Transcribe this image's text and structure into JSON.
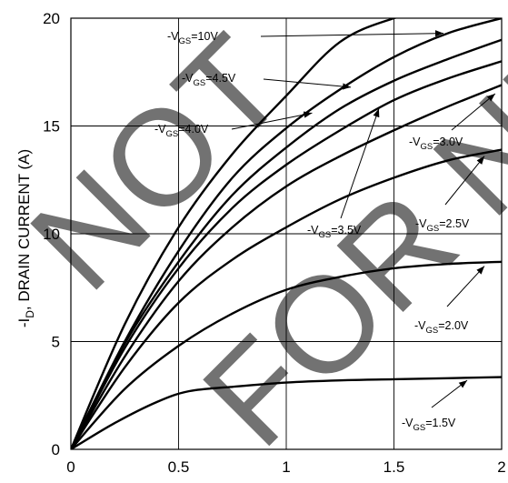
{
  "chart_data": {
    "type": "line",
    "title": "",
    "xlabel": "",
    "ylabel": "-I_D, DRAIN CURRENT (A)",
    "ylabel_parts": {
      "pre": "-I",
      "sub": "D",
      "post": ", DRAIN CURRENT (A)"
    },
    "xlim": [
      0,
      2
    ],
    "ylim": [
      0,
      20
    ],
    "xticks": [
      "0",
      "0.5",
      "1",
      "1.5",
      "2"
    ],
    "yticks": [
      "0",
      "5",
      "10",
      "15",
      "20"
    ],
    "grid": true,
    "watermark": "NOT FOR NEW",
    "series": [
      {
        "name": "-V_GS=10V",
        "label": {
          "pre": "-V",
          "sub": "GS",
          "post": "=10V"
        },
        "x": [
          0,
          0.25,
          0.5,
          0.75,
          1.0,
          1.25,
          1.5,
          1.75,
          2.0
        ],
        "y": [
          0,
          5.8,
          10.3,
          13.7,
          16.4,
          18.9,
          20.0,
          20.6,
          21.0
        ]
      },
      {
        "name": "-V_GS=4.5V",
        "label": {
          "pre": "-V",
          "sub": "GS",
          "post": "=4.5V"
        },
        "x": [
          0,
          0.25,
          0.5,
          0.75,
          1.0,
          1.25,
          1.5,
          1.75,
          2.0
        ],
        "y": [
          0,
          5.0,
          9.2,
          12.6,
          14.9,
          16.7,
          18.2,
          19.3,
          20.0
        ]
      },
      {
        "name": "-V_GS=4.0V",
        "label": {
          "pre": "-V",
          "sub": "GS",
          "post": "=4.0V"
        },
        "x": [
          0,
          0.25,
          0.5,
          0.75,
          1.0,
          1.25,
          1.5,
          1.75,
          2.0
        ],
        "y": [
          0,
          4.9,
          8.7,
          11.8,
          14.0,
          15.8,
          17.1,
          18.1,
          19.0
        ]
      },
      {
        "name": "-V_GS=3.5V",
        "label": {
          "pre": "-V",
          "sub": "GS",
          "post": "=3.5V"
        },
        "x": [
          0,
          0.25,
          0.5,
          0.75,
          1.0,
          1.25,
          1.5,
          1.75,
          2.0
        ],
        "y": [
          0,
          4.7,
          8.4,
          11.2,
          13.2,
          14.8,
          16.2,
          17.2,
          18.0
        ]
      },
      {
        "name": "-V_GS=3.0V",
        "label": {
          "pre": "-V",
          "sub": "GS",
          "post": "=3.0V"
        },
        "x": [
          0,
          0.25,
          0.5,
          0.75,
          1.0,
          1.25,
          1.5,
          1.75,
          2.0
        ],
        "y": [
          0,
          4.3,
          7.8,
          10.3,
          12.2,
          13.6,
          14.8,
          15.9,
          16.9
        ]
      },
      {
        "name": "-V_GS=2.5V",
        "label": {
          "pre": "-V",
          "sub": "GS",
          "post": "=2.5V"
        },
        "x": [
          0,
          0.25,
          0.5,
          0.75,
          1.0,
          1.25,
          1.5,
          1.75,
          2.0
        ],
        "y": [
          0,
          3.8,
          6.8,
          8.8,
          10.3,
          11.6,
          12.6,
          13.4,
          13.9
        ]
      },
      {
        "name": "-V_GS=2.0V",
        "label": {
          "pre": "-V",
          "sub": "GS",
          "post": "=2.0V"
        },
        "x": [
          0,
          0.25,
          0.5,
          0.75,
          1.0,
          1.25,
          1.5,
          1.75,
          2.0
        ],
        "y": [
          0,
          2.8,
          4.8,
          6.3,
          7.4,
          8.0,
          8.4,
          8.6,
          8.7
        ]
      },
      {
        "name": "-V_GS=1.5V",
        "label": {
          "pre": "-V",
          "sub": "GS",
          "post": "=1.5V"
        },
        "x": [
          0,
          0.2,
          0.4,
          0.55,
          0.75,
          1.0,
          1.25,
          1.5,
          1.75,
          2.0
        ],
        "y": [
          0,
          1.2,
          2.2,
          2.7,
          2.9,
          3.1,
          3.2,
          3.25,
          3.3,
          3.35
        ]
      }
    ]
  }
}
